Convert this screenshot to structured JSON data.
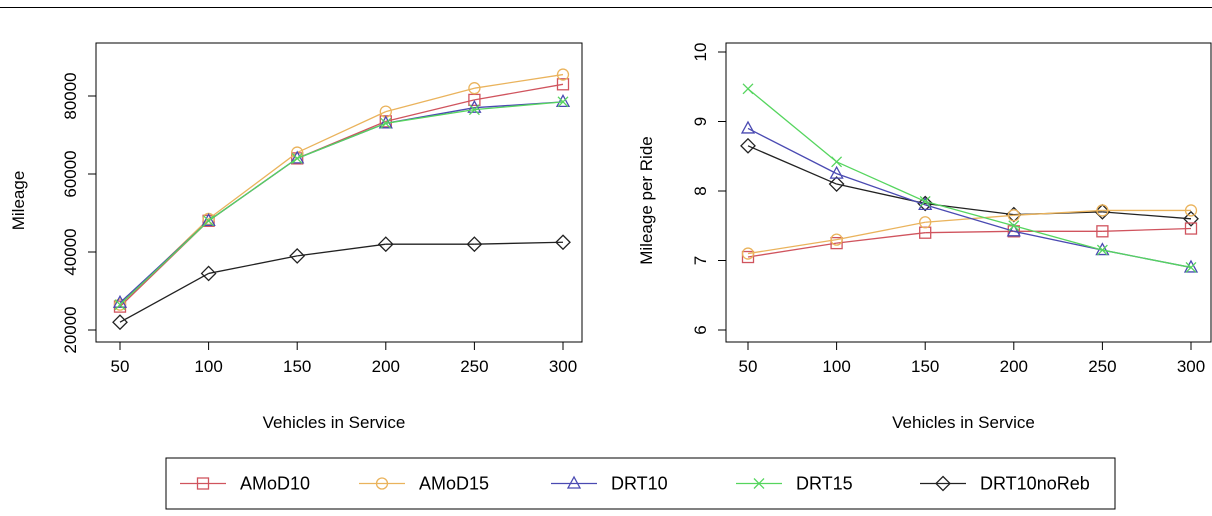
{
  "chart_data": [
    {
      "type": "line",
      "xlabel": "Vehicles in Service",
      "ylabel": "Mileage",
      "x": [
        50,
        100,
        150,
        200,
        250,
        300
      ],
      "xlim": [
        50,
        300
      ],
      "ylim": [
        20000,
        90000
      ],
      "xticks": [
        "50",
        "100",
        "150",
        "200",
        "250",
        "300"
      ],
      "yticks": [
        "20000",
        "40000",
        "60000",
        "80000"
      ],
      "series": [
        {
          "name": "AMoD10",
          "values": [
            26000,
            48000,
            64000,
            73500,
            79000,
            83000
          ]
        },
        {
          "name": "AMoD15",
          "values": [
            26500,
            48500,
            65500,
            76000,
            82000,
            85500
          ]
        },
        {
          "name": "DRT10",
          "values": [
            27000,
            48000,
            64000,
            73000,
            77000,
            78500
          ]
        },
        {
          "name": "DRT15",
          "values": [
            26500,
            48000,
            64000,
            73000,
            76500,
            78500
          ]
        },
        {
          "name": "DRT10noReb",
          "values": [
            22000,
            34500,
            39000,
            42000,
            42000,
            42500
          ]
        }
      ]
    },
    {
      "type": "line",
      "xlabel": "Vehicles in Service",
      "ylabel": "Mileage per Ride",
      "x": [
        50,
        100,
        150,
        200,
        250,
        300
      ],
      "xlim": [
        50,
        300
      ],
      "ylim": [
        6,
        10
      ],
      "xticks": [
        "50",
        "100",
        "150",
        "200",
        "250",
        "300"
      ],
      "yticks": [
        "6",
        "7",
        "8",
        "9",
        "10"
      ],
      "series": [
        {
          "name": "AMoD10",
          "values": [
            7.05,
            7.25,
            7.4,
            7.42,
            7.42,
            7.46
          ]
        },
        {
          "name": "AMoD15",
          "values": [
            7.1,
            7.3,
            7.55,
            7.65,
            7.72,
            7.72
          ]
        },
        {
          "name": "DRT10",
          "values": [
            8.9,
            8.25,
            7.8,
            7.42,
            7.15,
            6.9
          ]
        },
        {
          "name": "DRT15",
          "values": [
            9.47,
            8.42,
            7.85,
            7.5,
            7.15,
            6.9
          ]
        },
        {
          "name": "DRT10noReb",
          "values": [
            8.65,
            8.1,
            7.82,
            7.66,
            7.7,
            7.6
          ]
        }
      ]
    }
  ],
  "legend": {
    "placement": "bottom-center",
    "items": [
      {
        "label": "AMoD10",
        "marker": "square"
      },
      {
        "label": "AMoD15",
        "marker": "circle"
      },
      {
        "label": "DRT10",
        "marker": "triangle"
      },
      {
        "label": "DRT15",
        "marker": "cross"
      },
      {
        "label": "DRT10noReb",
        "marker": "diamond"
      }
    ]
  },
  "colors": {
    "AMoD10": "#d0545e",
    "AMoD15": "#eab35c",
    "DRT10": "#4a4ab2",
    "DRT15": "#55d55e",
    "DRT10noReb": "#222222"
  },
  "markers": {
    "AMoD10": "square",
    "AMoD15": "circle",
    "DRT10": "triangle",
    "DRT15": "cross",
    "DRT10noReb": "diamond"
  }
}
